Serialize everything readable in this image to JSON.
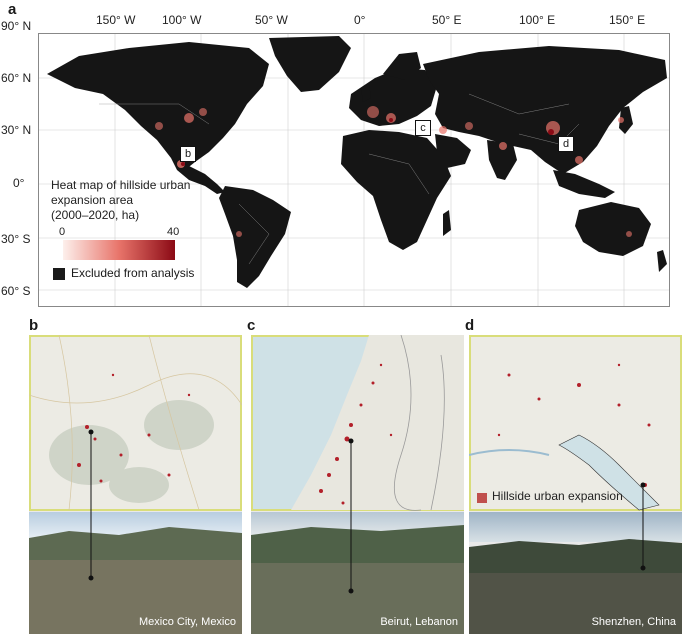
{
  "panels": {
    "a": "a",
    "b": "b",
    "c": "c",
    "d": "d"
  },
  "top_axis": [
    "150° W",
    "100° W",
    "50° W",
    "0°",
    "50° E",
    "100° E",
    "150° E"
  ],
  "left_axis": [
    "90° N",
    "60° N",
    "30° N",
    "0°",
    "30° S",
    "60° S"
  ],
  "legend": {
    "title_lines": [
      "Heat map of hillside urban",
      "expansion area",
      "(2000–2020, ha)"
    ],
    "scale_min": "0",
    "scale_max": "40",
    "excluded_label": "Excluded from analysis",
    "colors": {
      "low": "#fdf0ec",
      "mid": "#e8746a",
      "high": "#8b0a15",
      "excluded": "#1a1a1a"
    }
  },
  "callouts": [
    "b",
    "c",
    "d"
  ],
  "subpanels": [
    {
      "letter": "b",
      "location": "Mexico City, Mexico"
    },
    {
      "letter": "c",
      "location": "Beirut, Lebanon"
    },
    {
      "letter": "d",
      "location": "Shenzhen, China"
    }
  ],
  "inset_legend": {
    "label": "Hillside urban expansion",
    "color": "#c0504d"
  },
  "colors": {
    "frame_highlight": "#d9dd7a",
    "land": "#151515",
    "ocean": "#ffffff"
  }
}
